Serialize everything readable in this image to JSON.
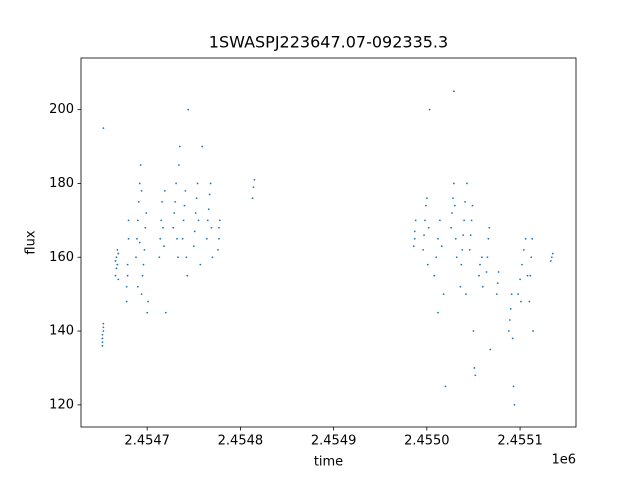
{
  "chart_data": {
    "type": "scatter",
    "title": "1SWASPJ223647.07-092335.3",
    "x_label": "time",
    "y_label": "flux",
    "x_offset_label": "1e6",
    "xlim": [
      2454629,
      2455160
    ],
    "ylim": [
      114,
      214
    ],
    "xticks": [
      {
        "value": 2454700,
        "label": "2.4547"
      },
      {
        "value": 2454800,
        "label": "2.4548"
      },
      {
        "value": 2454900,
        "label": "2.4549"
      },
      {
        "value": 2455000,
        "label": "2.4550"
      },
      {
        "value": 2455100,
        "label": "2.4551"
      }
    ],
    "yticks": [
      120,
      140,
      160,
      180,
      200
    ],
    "color": "#1f77b4",
    "x": [
      2454652,
      2454652,
      2454653,
      2454653,
      2454652,
      2454653,
      2454652,
      2454653,
      2454666,
      2454667,
      2454667,
      2454668,
      2454668,
      2454669,
      2454666,
      2454669,
      2454678,
      2454679,
      2454679,
      2454680,
      2454680,
      2454678,
      2454688,
      2454689,
      2454690,
      2454691,
      2454692,
      2454693,
      2454694,
      2454695,
      2454696,
      2454697,
      2454698,
      2454699,
      2454700,
      2454701,
      2454690,
      2454692,
      2454694,
      2454713,
      2454714,
      2454715,
      2454716,
      2454717,
      2454718,
      2454719,
      2454720,
      2454728,
      2454729,
      2454730,
      2454731,
      2454732,
      2454733,
      2454734,
      2454735,
      2454738,
      2454739,
      2454740,
      2454741,
      2454742,
      2454743,
      2454744,
      2454750,
      2454751,
      2454752,
      2454753,
      2454754,
      2454755,
      2454757,
      2454759,
      2454764,
      2454765,
      2454766,
      2454767,
      2454768,
      2454769,
      2454770,
      2454776,
      2454777,
      2454777,
      2454778,
      2454813,
      2454814,
      2454815,
      2454986,
      2454987,
      2454987,
      2454988,
      2454996,
      2454997,
      2454998,
      2454999,
      2455000,
      2455001,
      2455002,
      2455003,
      2455008,
      2455010,
      2455012,
      2455014,
      2455016,
      2455018,
      2455020,
      2455012,
      2455026,
      2455027,
      2455028,
      2455029,
      2455030,
      2455031,
      2455032,
      2455029,
      2455036,
      2455037,
      2455038,
      2455039,
      2455040,
      2455041,
      2455042,
      2455043,
      2455046,
      2455047,
      2455048,
      2455049,
      2455050,
      2455051,
      2455052,
      2455056,
      2455057,
      2455059,
      2455060,
      2455064,
      2455065,
      2455066,
      2455067,
      2455068,
      2455075,
      2455076,
      2455077,
      2455088,
      2455089,
      2455090,
      2455091,
      2455092,
      2455093,
      2455094,
      2455098,
      2455100,
      2455102,
      2455104,
      2455106,
      2455108,
      2455101,
      2455110,
      2455111,
      2455112,
      2455113,
      2455114,
      2455133,
      2455134,
      2455135
    ],
    "y": [
      137,
      138,
      140,
      141,
      139,
      142,
      136,
      195,
      155,
      157,
      160,
      158,
      162,
      154,
      159,
      161,
      152,
      155,
      158,
      165,
      170,
      148,
      160,
      165,
      170,
      175,
      180,
      185,
      150,
      155,
      158,
      162,
      168,
      172,
      145,
      148,
      152,
      164,
      178,
      160,
      165,
      170,
      175,
      168,
      163,
      178,
      145,
      168,
      172,
      175,
      180,
      165,
      160,
      185,
      190,
      165,
      170,
      174,
      178,
      160,
      155,
      200,
      163,
      167,
      172,
      176,
      180,
      170,
      158,
      190,
      165,
      170,
      173,
      177,
      180,
      168,
      160,
      162,
      165,
      168,
      170,
      176,
      179,
      181,
      163,
      165,
      167,
      170,
      162,
      166,
      170,
      174,
      176,
      158,
      168,
      200,
      155,
      160,
      165,
      170,
      163,
      150,
      125,
      145,
      168,
      172,
      176,
      180,
      174,
      165,
      160,
      205,
      152,
      158,
      162,
      166,
      170,
      175,
      150,
      180,
      162,
      166,
      170,
      174,
      140,
      130,
      128,
      155,
      158,
      160,
      152,
      156,
      160,
      165,
      168,
      135,
      150,
      153,
      156,
      140,
      143,
      146,
      150,
      138,
      125,
      120,
      150,
      154,
      158,
      162,
      165,
      155,
      148,
      148,
      155,
      160,
      165,
      140,
      159,
      160,
      161
    ]
  }
}
